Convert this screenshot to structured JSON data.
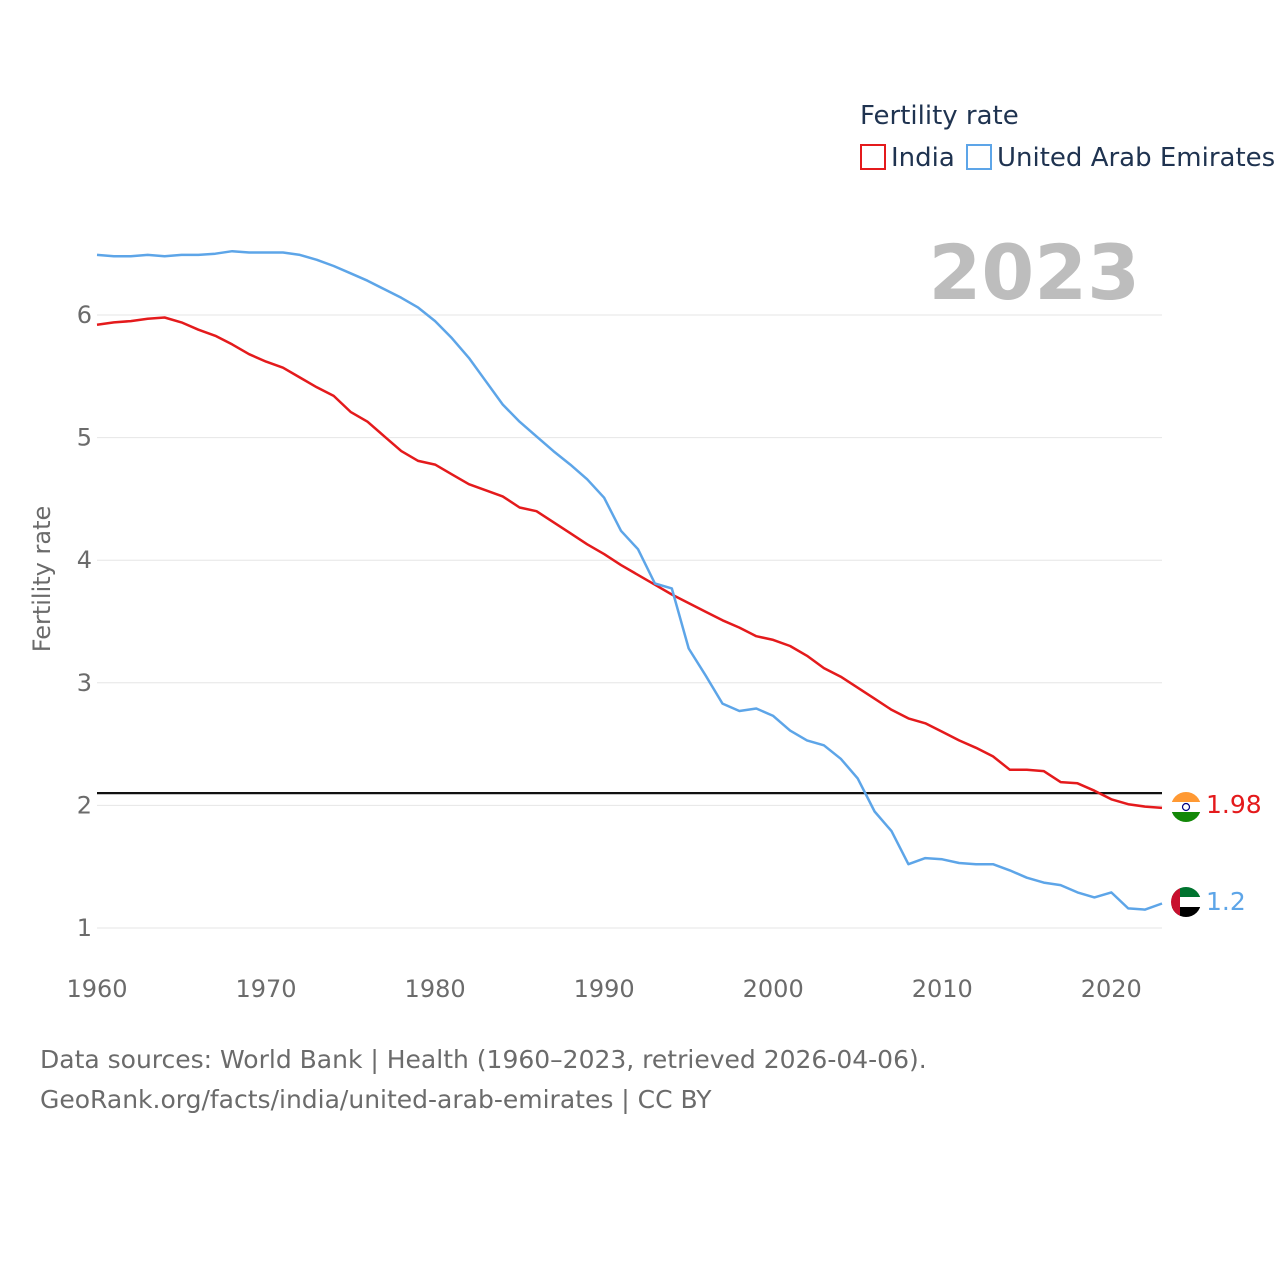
{
  "chart_data": {
    "type": "line",
    "legend_title": "Fertility rate",
    "ylabel": "Fertility rate",
    "year_label": "2023",
    "xlim": [
      1960,
      2023
    ],
    "ylim": [
      0.8,
      6.8
    ],
    "x_ticks": [
      1960,
      1970,
      1980,
      1990,
      2000,
      2010,
      2020
    ],
    "y_ticks": [
      1,
      2,
      3,
      4,
      5,
      6
    ],
    "reference_line": 2.1,
    "x": [
      1960,
      1961,
      1962,
      1963,
      1964,
      1965,
      1966,
      1967,
      1968,
      1969,
      1970,
      1971,
      1972,
      1973,
      1974,
      1975,
      1976,
      1977,
      1978,
      1979,
      1980,
      1981,
      1982,
      1983,
      1984,
      1985,
      1986,
      1987,
      1988,
      1989,
      1990,
      1991,
      1992,
      1993,
      1994,
      1995,
      1996,
      1997,
      1998,
      1999,
      2000,
      2001,
      2002,
      2003,
      2004,
      2005,
      2006,
      2007,
      2008,
      2009,
      2010,
      2011,
      2012,
      2013,
      2014,
      2015,
      2016,
      2017,
      2018,
      2019,
      2020,
      2021,
      2022,
      2023
    ],
    "series": [
      {
        "name": "India",
        "color": "#e41a1c",
        "end_label": "1.98",
        "flag": "india-flag",
        "values": [
          5.92,
          5.94,
          5.95,
          5.97,
          5.98,
          5.94,
          5.88,
          5.83,
          5.76,
          5.68,
          5.62,
          5.57,
          5.49,
          5.41,
          5.34,
          5.21,
          5.13,
          5.01,
          4.89,
          4.81,
          4.78,
          4.7,
          4.62,
          4.57,
          4.52,
          4.43,
          4.4,
          4.31,
          4.22,
          4.13,
          4.05,
          3.96,
          3.88,
          3.8,
          3.72,
          3.65,
          3.58,
          3.51,
          3.45,
          3.38,
          3.35,
          3.3,
          3.22,
          3.12,
          3.05,
          2.96,
          2.87,
          2.78,
          2.71,
          2.67,
          2.6,
          2.53,
          2.47,
          2.4,
          2.29,
          2.29,
          2.28,
          2.19,
          2.18,
          2.12,
          2.05,
          2.01,
          1.99,
          1.98
        ]
      },
      {
        "name": "United Arab Emirates",
        "color": "#5da5e8",
        "end_label": "1.2",
        "flag": "uae-flag",
        "values": [
          6.49,
          6.48,
          6.48,
          6.49,
          6.48,
          6.49,
          6.49,
          6.5,
          6.52,
          6.51,
          6.51,
          6.51,
          6.49,
          6.45,
          6.4,
          6.34,
          6.28,
          6.21,
          6.14,
          6.06,
          5.95,
          5.81,
          5.65,
          5.46,
          5.27,
          5.13,
          5.01,
          4.89,
          4.78,
          4.66,
          4.51,
          4.24,
          4.09,
          3.81,
          3.77,
          3.28,
          3.06,
          2.83,
          2.77,
          2.79,
          2.73,
          2.61,
          2.53,
          2.49,
          2.38,
          2.22,
          1.95,
          1.79,
          1.52,
          1.57,
          1.56,
          1.53,
          1.52,
          1.52,
          1.47,
          1.41,
          1.37,
          1.35,
          1.29,
          1.25,
          1.29,
          1.16,
          1.15,
          1.2
        ]
      }
    ]
  },
  "footer": {
    "source_line": "Data sources: World Bank | Health (1960–2023, retrieved 2026-04-06).",
    "url_line": "GeoRank.org/facts/india/united-arab-emirates | CC BY"
  }
}
